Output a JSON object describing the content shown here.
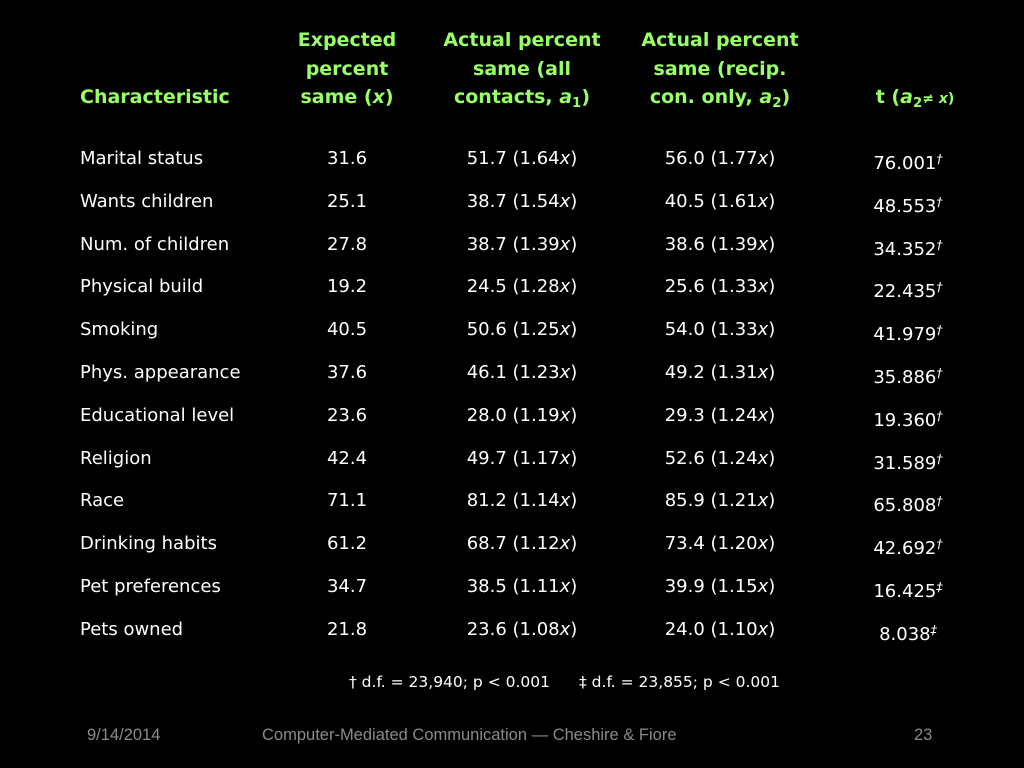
{
  "table": {
    "headers": {
      "characteristic": "Characteristic",
      "expected": {
        "line1": "Expected",
        "line2": "percent",
        "line3_pre": "same (",
        "line3_var": "x",
        "line3_post": ")"
      },
      "actual_all": {
        "line1": "Actual percent",
        "line2": "same (all",
        "line3_pre": "contacts, ",
        "line3_var": "a",
        "line3_sub": "1",
        "line3_post": ")"
      },
      "actual_recip": {
        "line1": "Actual percent",
        "line2": "same (recip.",
        "line3_pre": "con. only, ",
        "line3_var": "a",
        "line3_sub": "2",
        "line3_post": ")"
      },
      "t": {
        "pre": "t (",
        "var": "a",
        "sub": "2",
        "ne": "≠ ",
        "x": "x",
        "post": ")"
      }
    },
    "rows": [
      {
        "characteristic": "Marital status",
        "expected": "31.6",
        "actual_all": "51.7 (1.64x)",
        "actual_recip": "56.0 (1.77x)",
        "t": "76.001",
        "mark": "†"
      },
      {
        "characteristic": "Wants children",
        "expected": "25.1",
        "actual_all": "38.7 (1.54x)",
        "actual_recip": "40.5 (1.61x)",
        "t": "48.553",
        "mark": "†"
      },
      {
        "characteristic": "Num. of children",
        "expected": "27.8",
        "actual_all": "38.7 (1.39x)",
        "actual_recip": "38.6 (1.39x)",
        "t": "34.352",
        "mark": "†"
      },
      {
        "characteristic": "Physical build",
        "expected": "19.2",
        "actual_all": "24.5 (1.28x)",
        "actual_recip": "25.6 (1.33x)",
        "t": "22.435",
        "mark": "†"
      },
      {
        "characteristic": "Smoking",
        "expected": "40.5",
        "actual_all": "50.6 (1.25x)",
        "actual_recip": "54.0 (1.33x)",
        "t": "41.979",
        "mark": "†"
      },
      {
        "characteristic": "Phys. appearance",
        "expected": "37.6",
        "actual_all": "46.1 (1.23x)",
        "actual_recip": "49.2 (1.31x)",
        "t": "35.886",
        "mark": "†"
      },
      {
        "characteristic": "Educational level",
        "expected": "23.6",
        "actual_all": "28.0 (1.19x)",
        "actual_recip": "29.3 (1.24x)",
        "t": "19.360",
        "mark": "†"
      },
      {
        "characteristic": "Religion",
        "expected": "42.4",
        "actual_all": "49.7 (1.17x)",
        "actual_recip": "52.6 (1.24x)",
        "t": "31.589",
        "mark": "†"
      },
      {
        "characteristic": "Race",
        "expected": "71.1",
        "actual_all": "81.2 (1.14x)",
        "actual_recip": "85.9 (1.21x)",
        "t": "65.808",
        "mark": "†"
      },
      {
        "characteristic": "Drinking habits",
        "expected": "61.2",
        "actual_all": "68.7 (1.12x)",
        "actual_recip": "73.4 (1.20x)",
        "t": "42.692",
        "mark": "†"
      },
      {
        "characteristic": "Pet preferences",
        "expected": "34.7",
        "actual_all": "38.5 (1.11x)",
        "actual_recip": "39.9 (1.15x)",
        "t": "16.425",
        "mark": "‡"
      },
      {
        "characteristic": "Pets owned",
        "expected": "21.8",
        "actual_all": "23.6 (1.08x)",
        "actual_recip": "24.0 (1.10x)",
        "t": "8.038",
        "mark": "‡"
      }
    ],
    "footnotes": {
      "dagger": "† d.f. = 23,940; p < 0.001",
      "double_dagger": "‡ d.f. = 23,855; p < 0.001"
    }
  },
  "footer": {
    "date": "9/14/2014",
    "title": "Computer-Mediated Communication — Cheshire & Fiore",
    "page_number": "23"
  },
  "colors": {
    "background": "#000000",
    "header": "#99ff66",
    "body_text": "#ffffff",
    "footer_text": "#8a8a8a"
  }
}
